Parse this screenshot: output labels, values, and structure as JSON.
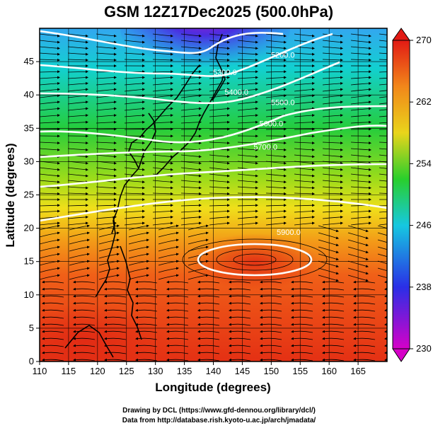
{
  "title": "GSM 12Z17Dec2025 (500.0hPa)",
  "map": {
    "xlabel": "Longitude (degrees)",
    "ylabel": "Latitude  (degrees)",
    "xlim": [
      110,
      170
    ],
    "ylim": [
      0,
      50
    ],
    "x_ticks": [
      "110",
      "115",
      "120",
      "125",
      "130",
      "135",
      "140",
      "145",
      "150",
      "155",
      "160",
      "165"
    ],
    "y_ticks": [
      "0",
      "5",
      "10",
      "15",
      "20",
      "25",
      "30",
      "35",
      "40",
      "45"
    ],
    "grid": true,
    "contour_labels": [
      {
        "text": "5200.0",
        "lon": 152,
        "lat": 45.6
      },
      {
        "text": "5300.0",
        "lon": 142,
        "lat": 43.0
      },
      {
        "text": "5400.0",
        "lon": 144,
        "lat": 40.0
      },
      {
        "text": "5500.0",
        "lon": 152,
        "lat": 38.5
      },
      {
        "text": "5600.0",
        "lon": 150,
        "lat": 35.3
      },
      {
        "text": "5700.0",
        "lon": 149,
        "lat": 31.8
      },
      {
        "text": "5900.0",
        "lon": 153,
        "lat": 19.0
      }
    ]
  },
  "colorbar": {
    "ticks": [
      "230",
      "238",
      "246",
      "254",
      "262",
      "270"
    ],
    "range": [
      230,
      270
    ],
    "colors": [
      "#d600c8",
      "#2a2fe6",
      "#16c8e0",
      "#29cf2c",
      "#e9d41b",
      "#f2871a",
      "#e21a14"
    ]
  },
  "credits": {
    "line1": "Drawing by DCL (https://www.gfd-dennou.org/library/dcl/)",
    "line2": "Data from http://database.rish.kyoto-u.ac.jp/arch/jmadata/"
  }
}
